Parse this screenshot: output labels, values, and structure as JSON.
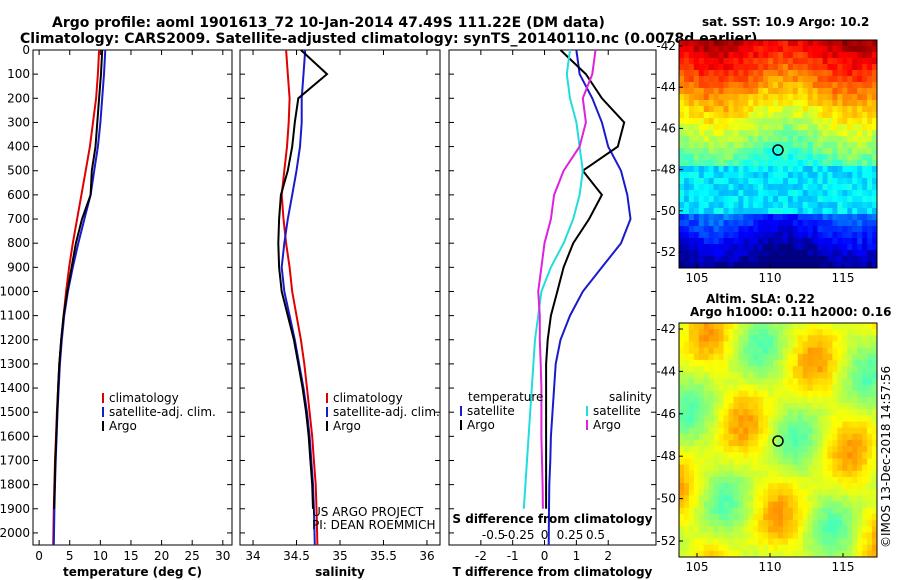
{
  "header": {
    "title_line1": "Argo profile: aoml 1901613_72 10-Jan-2014 47.49S 111.22E (DM data)",
    "title_line2": "Climatology: CARS2009. Satellite-adjusted climatology: synTS_20140110.nc (0.0078d earlier)"
  },
  "depth_ticks": [
    0,
    100,
    200,
    300,
    400,
    500,
    600,
    700,
    800,
    900,
    1000,
    1100,
    1200,
    1300,
    1400,
    1500,
    1600,
    1700,
    1800,
    1900,
    2000
  ],
  "colors": {
    "climatology": "#e00000",
    "satellite": "#1a1acc",
    "argo": "#000000",
    "sat_salinity": "#22dddd",
    "argo_salinity": "#dd22dd"
  },
  "chart_data": [
    {
      "type": "line",
      "xlabel": "temperature (deg C)",
      "ylim": [
        2050,
        0
      ],
      "xlim": [
        -1,
        31.5
      ],
      "xticks": [
        0,
        5,
        10,
        15,
        20,
        25,
        30
      ],
      "legend": [
        "climatology",
        "satellite-adj. clim.",
        "Argo"
      ],
      "series": [
        {
          "name": "climatology",
          "color": "#e00000",
          "x": [
            9.8,
            9.6,
            9.3,
            8.8,
            8.3,
            7.6,
            6.9,
            6.2,
            5.5,
            4.9,
            4.4,
            4.0,
            3.6,
            3.3,
            3.1,
            2.9,
            2.75,
            2.6,
            2.5,
            2.4,
            2.3
          ],
          "y": [
            0,
            100,
            200,
            300,
            400,
            500,
            600,
            700,
            800,
            900,
            1000,
            1100,
            1200,
            1300,
            1400,
            1500,
            1600,
            1700,
            1800,
            1900,
            2050
          ]
        },
        {
          "name": "satellite-adj. clim.",
          "color": "#1a1acc",
          "x": [
            10.8,
            10.6,
            10.3,
            10.0,
            9.6,
            9.0,
            8.4,
            7.4,
            6.4,
            5.5,
            4.7,
            4.1,
            3.7,
            3.4,
            3.2,
            3.0,
            2.85,
            2.7,
            2.6,
            2.5,
            2.4
          ],
          "y": [
            0,
            100,
            200,
            300,
            400,
            500,
            600,
            700,
            800,
            900,
            1000,
            1100,
            1200,
            1300,
            1400,
            1500,
            1600,
            1700,
            1800,
            1900,
            2050
          ]
        },
        {
          "name": "Argo",
          "color": "#000000",
          "x": [
            10.3,
            10.1,
            9.8,
            9.5,
            9.2,
            8.6,
            8.4,
            7.0,
            6.0,
            5.3,
            4.6,
            4.0,
            3.6,
            3.3,
            3.1,
            2.95,
            2.8,
            2.65,
            2.55,
            2.45
          ],
          "y": [
            0,
            100,
            200,
            300,
            400,
            500,
            600,
            700,
            800,
            900,
            1000,
            1100,
            1200,
            1300,
            1400,
            1500,
            1600,
            1700,
            1800,
            1900
          ]
        }
      ]
    },
    {
      "type": "line",
      "xlabel": "salinity",
      "ylim": [
        2050,
        0
      ],
      "xlim": [
        33.85,
        36.15
      ],
      "xticks": [
        34,
        34.5,
        35,
        35.5,
        36
      ],
      "legend": [
        "climatology",
        "satellite-adj. clim.",
        "Argo"
      ],
      "series": [
        {
          "name": "climatology",
          "color": "#e00000",
          "x": [
            34.38,
            34.4,
            34.42,
            34.41,
            34.39,
            34.36,
            34.33,
            34.35,
            34.38,
            34.42,
            34.45,
            34.5,
            34.55,
            34.59,
            34.62,
            34.65,
            34.68,
            34.7,
            34.72,
            34.73,
            34.74
          ],
          "y": [
            0,
            100,
            200,
            300,
            400,
            500,
            600,
            700,
            800,
            900,
            1000,
            1100,
            1200,
            1300,
            1400,
            1500,
            1600,
            1700,
            1800,
            1900,
            2050
          ]
        },
        {
          "name": "satellite-adj. clim.",
          "color": "#1a1acc",
          "x": [
            34.6,
            34.58,
            34.56,
            34.56,
            34.54,
            34.5,
            34.45,
            34.4,
            34.36,
            34.33,
            34.36,
            34.42,
            34.48,
            34.53,
            34.58,
            34.62,
            34.65,
            34.67,
            34.69,
            34.7,
            34.71
          ],
          "y": [
            0,
            100,
            200,
            300,
            400,
            500,
            600,
            700,
            800,
            900,
            1000,
            1100,
            1200,
            1300,
            1400,
            1500,
            1600,
            1700,
            1800,
            1900,
            2050
          ]
        },
        {
          "name": "Argo",
          "color": "#000000",
          "x": [
            34.55,
            34.85,
            34.52,
            34.48,
            34.45,
            34.4,
            34.32,
            34.3,
            34.29,
            34.3,
            34.33,
            34.4,
            34.47,
            34.52,
            34.57,
            34.61,
            34.64,
            34.66,
            34.68,
            34.69
          ],
          "y": [
            0,
            100,
            200,
            300,
            400,
            500,
            600,
            700,
            800,
            900,
            1000,
            1100,
            1200,
            1300,
            1400,
            1500,
            1600,
            1700,
            1800,
            1900
          ]
        }
      ]
    },
    {
      "type": "line",
      "xlabel": "T difference from climatology",
      "xlabel2": "S difference from climatology",
      "ylim": [
        2050,
        0
      ],
      "xlim": [
        -3,
        3.5
      ],
      "xticks": [
        -2,
        -1,
        0,
        1,
        2
      ],
      "xticks_salinity_labels": [
        "-0.5",
        "-0.25",
        "0",
        "0.25",
        "0.5"
      ],
      "legend_temperature_title": "temperature",
      "legend_temperature": [
        "satellite",
        "Argo"
      ],
      "legend_salinity_title": "salinity",
      "legend_salinity": [
        "satellite",
        "Argo"
      ],
      "series": [
        {
          "name": "T satellite",
          "color": "#1a1acc",
          "x": [
            1.0,
            1.1,
            1.5,
            1.8,
            2.0,
            2.4,
            2.6,
            2.7,
            2.4,
            1.8,
            1.2,
            0.8,
            0.5,
            0.35,
            0.3,
            0.25,
            0.2,
            0.18,
            0.15,
            0.14,
            0.13
          ],
          "y": [
            0,
            100,
            200,
            300,
            400,
            500,
            600,
            700,
            800,
            900,
            1000,
            1100,
            1200,
            1300,
            1400,
            1500,
            1600,
            1700,
            1800,
            1900,
            2050
          ]
        },
        {
          "name": "T Argo",
          "color": "#000000",
          "x": [
            0.5,
            1.3,
            1.8,
            2.5,
            2.3,
            1.2,
            1.8,
            1.4,
            0.9,
            0.6,
            0.4,
            0.2,
            0.1,
            0.05,
            0.05,
            0.05,
            0.05,
            0.05,
            0.05,
            0.05
          ],
          "y": [
            0,
            100,
            200,
            300,
            400,
            500,
            600,
            700,
            800,
            900,
            1000,
            1100,
            1200,
            1300,
            1400,
            1500,
            1600,
            1700,
            1800,
            1900
          ]
        },
        {
          "name": "S satellite",
          "color": "#22dddd",
          "x": [
            0.8,
            0.7,
            0.8,
            1.0,
            1.1,
            1.2,
            1.1,
            0.9,
            0.6,
            0.2,
            -0.1,
            -0.2,
            -0.3,
            -0.35,
            -0.4,
            -0.45,
            -0.5,
            -0.55,
            -0.6,
            -0.65
          ],
          "y": [
            0,
            100,
            200,
            300,
            400,
            500,
            600,
            700,
            800,
            900,
            1000,
            1100,
            1200,
            1300,
            1400,
            1500,
            1600,
            1700,
            1800,
            1900
          ]
        },
        {
          "name": "S Argo",
          "color": "#dd22dd",
          "x": [
            1.6,
            1.5,
            1.2,
            1.3,
            1.1,
            0.6,
            0.3,
            0.2,
            0.0,
            -0.1,
            -0.2,
            -0.15,
            -0.15,
            -0.12,
            -0.1,
            -0.1,
            -0.1,
            -0.08,
            -0.06,
            -0.05
          ],
          "y": [
            0,
            100,
            200,
            300,
            400,
            500,
            600,
            700,
            800,
            900,
            1000,
            1100,
            1200,
            1300,
            1400,
            1500,
            1600,
            1700,
            1800,
            1900
          ]
        }
      ]
    }
  ],
  "maps": {
    "sst_title": "sat. SST: 10.9 Argo: 10.2",
    "sla_title_line1": "Altim. SLA: 0.22",
    "sla_title_line2": "Argo h1000: 0.11 h2000: 0.16",
    "lat_ticks": [
      "-42",
      "-44",
      "-46",
      "-48",
      "-50",
      "-52"
    ],
    "lon_ticks": [
      "105",
      "110",
      "115"
    ],
    "credit": "©IMOS 13-Dec-2018 14:57:56"
  },
  "notes": {
    "project_line1": "US ARGO PROJECT",
    "project_line2": "PI: DEAN ROEMMICH"
  }
}
